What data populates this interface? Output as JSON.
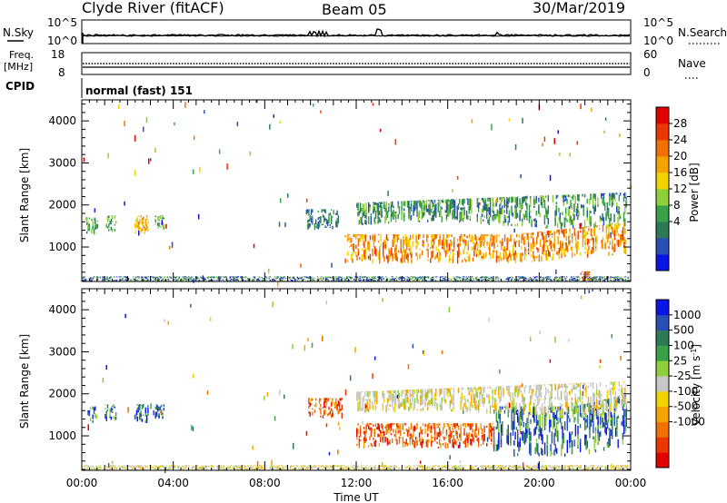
{
  "header": {
    "station": "Clyde River (fitACF)",
    "beam": "Beam 05",
    "date": "30/Mar/2019"
  },
  "top_panels": {
    "nsky_label": "N.Sky",
    "nsky_ticks": [
      "10^5",
      "10^0"
    ],
    "nsearch_label": "N.Search",
    "nsearch_ticks": [
      "10^5",
      "10^0"
    ],
    "freq_label": "Freq.",
    "freq_unit": "[MHz]",
    "freq_ticks": [
      "18",
      "8"
    ],
    "nave_label": "Nave",
    "nave_ticks": [
      "60",
      "0"
    ],
    "cpid_label": "CPID",
    "cpid_value": "normal (fast) 151"
  },
  "chart_data": [
    {
      "type": "heatmap",
      "parameter": "power",
      "ylabel": "Slant Range [km]",
      "xlabel": "",
      "ylim": [
        180,
        4500
      ],
      "y_ticks": [
        "4000",
        "3000",
        "2000",
        "1000"
      ],
      "x_ticks": [],
      "colorbar": {
        "label": "Power [dB]",
        "ticks": [
          "28",
          "24",
          "20",
          "16",
          "12",
          "8",
          "4"
        ],
        "colors": [
          "#0a14e6",
          "#2a4fb4",
          "#2e7a56",
          "#3aa14a",
          "#8fcf3a",
          "#f2d300",
          "#f5a300",
          "#f07000",
          "#ea3800",
          "#e00000"
        ]
      },
      "echo_regions": [
        {
          "t0": 0.0,
          "t1": 23.9,
          "r0": 180,
          "r1": 300,
          "level": "mixed"
        },
        {
          "t0": 0.2,
          "t1": 0.7,
          "r0": 1300,
          "r1": 1700,
          "level": "8-16"
        },
        {
          "t0": 1.0,
          "t1": 1.5,
          "r0": 1350,
          "r1": 1750,
          "level": "8-16"
        },
        {
          "t0": 2.3,
          "t1": 2.9,
          "r0": 1300,
          "r1": 1750,
          "level": "16-24"
        },
        {
          "t0": 3.2,
          "t1": 3.6,
          "r0": 1400,
          "r1": 1750,
          "level": "8-16"
        },
        {
          "t0": 9.8,
          "t1": 11.2,
          "r0": 1400,
          "r1": 1900,
          "level": "4-12"
        },
        {
          "t0": 11.5,
          "t1": 23.8,
          "r0": 600,
          "r1": 1300,
          "level": "16-28"
        },
        {
          "t0": 12.0,
          "t1": 23.8,
          "r0": 1500,
          "r1": 2300,
          "level": "4-16"
        },
        {
          "t0": 21.8,
          "t1": 22.3,
          "r0": 180,
          "r1": 420,
          "level": "24-28"
        }
      ]
    },
    {
      "type": "heatmap",
      "parameter": "velocity",
      "ylabel": "Slant Range [km]",
      "xlabel": "Time UT",
      "ylim": [
        180,
        4500
      ],
      "y_ticks": [
        "4000",
        "3000",
        "2000",
        "1000"
      ],
      "x_ticks": [
        "00:00",
        "04:00",
        "08:00",
        "12:00",
        "16:00",
        "20:00",
        "00:00"
      ],
      "colorbar": {
        "label": "Velocity [m s",
        "label_sup": "-1",
        "label_end": "]",
        "ticks": [
          "1000",
          "500",
          "100",
          "25",
          "-25",
          "-100",
          "-500",
          "-1000"
        ],
        "colors": [
          "#e00000",
          "#ea3800",
          "#f07000",
          "#f5a300",
          "#f2d300",
          "#c8c8c8",
          "#8fcf3a",
          "#3aa14a",
          "#2e7a56",
          "#2a4fb4",
          "#0a14e6"
        ]
      },
      "echo_regions": [
        {
          "t0": 0.0,
          "t1": 23.9,
          "r0": 180,
          "r1": 300,
          "level": "ground"
        },
        {
          "t0": 0.2,
          "t1": 0.7,
          "r0": 1300,
          "r1": 1700,
          "level": "toward"
        },
        {
          "t0": 1.0,
          "t1": 1.5,
          "r0": 1350,
          "r1": 1750,
          "level": "toward"
        },
        {
          "t0": 2.3,
          "t1": 2.9,
          "r0": 1300,
          "r1": 1750,
          "level": "toward"
        },
        {
          "t0": 3.2,
          "t1": 3.6,
          "r0": 1400,
          "r1": 1750,
          "level": "toward"
        },
        {
          "t0": 9.8,
          "t1": 11.4,
          "r0": 1400,
          "r1": 1900,
          "level": "away"
        },
        {
          "t0": 12.0,
          "t1": 18.0,
          "r0": 700,
          "r1": 1300,
          "level": "away"
        },
        {
          "t0": 18.0,
          "t1": 23.8,
          "r0": 500,
          "r1": 1700,
          "level": "toward"
        },
        {
          "t0": 12.0,
          "t1": 23.8,
          "r0": 1500,
          "r1": 2300,
          "level": "near-zero"
        }
      ]
    }
  ]
}
